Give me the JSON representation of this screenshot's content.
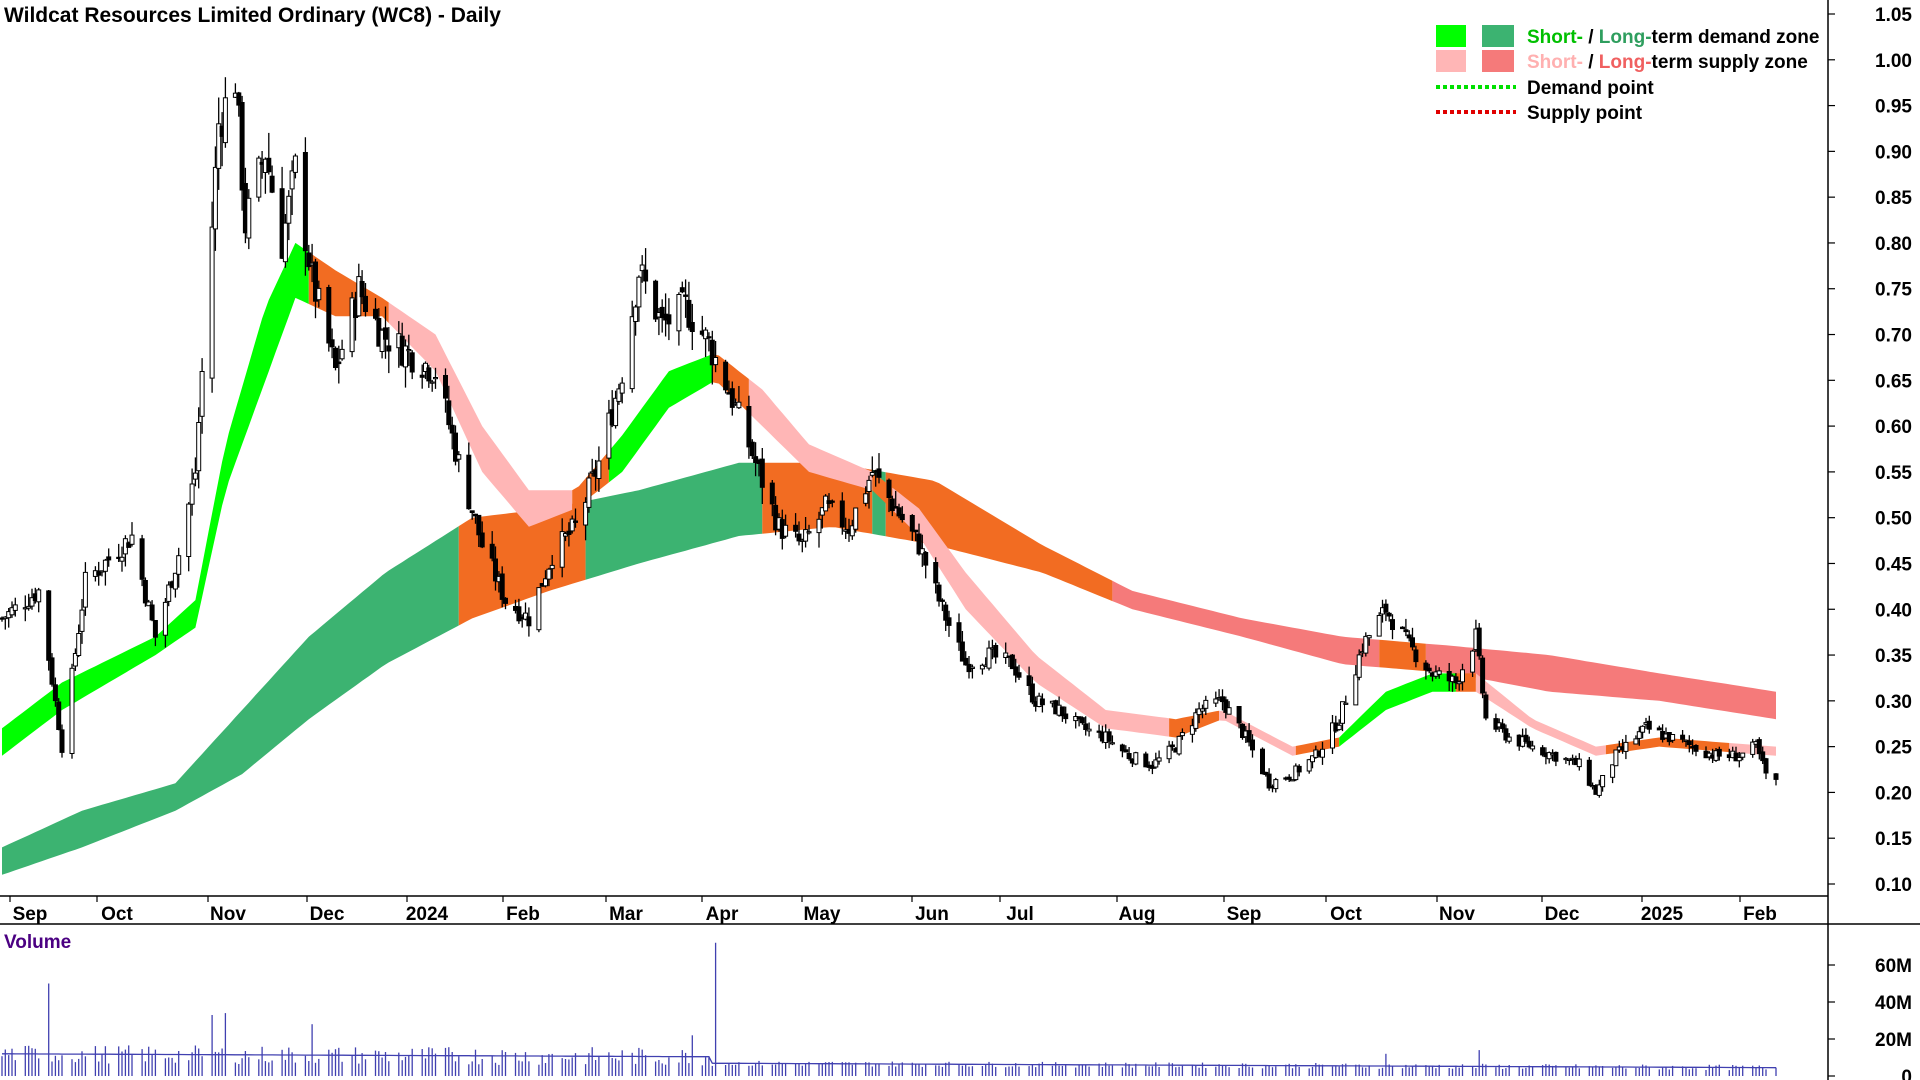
{
  "chart_data": {
    "type": "candlestick",
    "title": "Wildcat Resources Limited Ordinary (WC8) - Daily",
    "price_axis": {
      "ylim": [
        0.08,
        1.06
      ],
      "ticks": [
        "1.05",
        "1.00",
        "0.95",
        "0.90",
        "0.85",
        "0.80",
        "0.75",
        "0.70",
        "0.65",
        "0.60",
        "0.55",
        "0.50",
        "0.45",
        "0.40",
        "0.35",
        "0.30",
        "0.25",
        "0.20",
        "0.15",
        "0.10"
      ]
    },
    "x_labels": [
      "Sep",
      "Oct",
      "Nov",
      "Dec",
      "2024",
      "Feb",
      "Mar",
      "Apr",
      "May",
      "Jun",
      "Jul",
      "Aug",
      "Sep",
      "Oct",
      "Nov",
      "Dec",
      "2025",
      "Feb"
    ],
    "volume_panel": {
      "label": "Volume",
      "ticks": [
        "60M",
        "40M",
        "20M",
        "0"
      ],
      "ylim": [
        0,
        75
      ],
      "unit": "M"
    },
    "legend": {
      "rows": [
        {
          "parts": [
            "Short-",
            " / ",
            "Long-",
            "term demand zone"
          ]
        },
        {
          "parts": [
            "Short-",
            " / ",
            "Long-",
            "term supply zone"
          ]
        },
        {
          "parts": [
            "Demand point"
          ]
        },
        {
          "parts": [
            "Supply point"
          ]
        }
      ],
      "placement": "top-right"
    },
    "colors": {
      "short_demand": "#00ff00",
      "long_demand": "#3cb371",
      "short_supply": "#ffb6b6",
      "long_supply": "#f57a7a",
      "overlap_zone": "#f26c22",
      "demand_point": "#00e000",
      "supply_point": "#e00000",
      "volume": "#4040b0",
      "short_label_green": "#00c000",
      "short_label_pink": "#ffb0b0",
      "long_label_green": "#2e9e5e",
      "long_label_red": "#f06060"
    },
    "price_path": [
      {
        "date": "2023-08-28",
        "close": 0.39
      },
      {
        "date": "2023-09-08",
        "close": 0.42
      },
      {
        "date": "2023-09-15",
        "close": 0.25
      },
      {
        "date": "2023-09-22",
        "close": 0.43
      },
      {
        "date": "2023-10-06",
        "close": 0.48
      },
      {
        "date": "2023-10-13",
        "close": 0.37
      },
      {
        "date": "2023-10-20",
        "close": 0.46
      },
      {
        "date": "2023-10-25",
        "close": 0.55
      },
      {
        "date": "2023-10-30",
        "close": 0.82
      },
      {
        "date": "2023-11-01",
        "close": 0.93
      },
      {
        "date": "2023-11-06",
        "close": 0.98
      },
      {
        "date": "2023-11-09",
        "close": 0.82
      },
      {
        "date": "2023-11-15",
        "close": 0.9
      },
      {
        "date": "2023-11-20",
        "close": 0.8
      },
      {
        "date": "2023-11-24",
        "close": 0.88
      },
      {
        "date": "2023-11-29",
        "close": 0.76
      },
      {
        "date": "2023-12-06",
        "close": 0.66
      },
      {
        "date": "2023-12-13",
        "close": 0.75
      },
      {
        "date": "2023-12-20",
        "close": 0.7
      },
      {
        "date": "2024-01-05",
        "close": 0.66
      },
      {
        "date": "2024-01-12",
        "close": 0.56
      },
      {
        "date": "2024-01-19",
        "close": 0.47
      },
      {
        "date": "2024-01-26",
        "close": 0.41
      },
      {
        "date": "2024-02-02",
        "close": 0.39
      },
      {
        "date": "2024-02-09",
        "close": 0.46
      },
      {
        "date": "2024-02-16",
        "close": 0.49
      },
      {
        "date": "2024-02-23",
        "close": 0.56
      },
      {
        "date": "2024-03-01",
        "close": 0.66
      },
      {
        "date": "2024-03-06",
        "close": 0.77
      },
      {
        "date": "2024-03-13",
        "close": 0.71
      },
      {
        "date": "2024-03-20",
        "close": 0.73
      },
      {
        "date": "2024-03-27",
        "close": 0.69
      },
      {
        "date": "2024-04-03",
        "close": 0.63
      },
      {
        "date": "2024-04-10",
        "close": 0.56
      },
      {
        "date": "2024-04-17",
        "close": 0.49
      },
      {
        "date": "2024-04-24",
        "close": 0.47
      },
      {
        "date": "2024-05-01",
        "close": 0.51
      },
      {
        "date": "2024-05-08",
        "close": 0.49
      },
      {
        "date": "2024-05-15",
        "close": 0.55
      },
      {
        "date": "2024-05-22",
        "close": 0.51
      },
      {
        "date": "2024-05-29",
        "close": 0.47
      },
      {
        "date": "2024-06-05",
        "close": 0.4
      },
      {
        "date": "2024-06-12",
        "close": 0.34
      },
      {
        "date": "2024-06-19",
        "close": 0.35
      },
      {
        "date": "2024-06-26",
        "close": 0.34
      },
      {
        "date": "2024-07-03",
        "close": 0.3
      },
      {
        "date": "2024-07-10",
        "close": 0.29
      },
      {
        "date": "2024-07-17",
        "close": 0.27
      },
      {
        "date": "2024-07-24",
        "close": 0.26
      },
      {
        "date": "2024-07-31",
        "close": 0.24
      },
      {
        "date": "2024-08-07",
        "close": 0.23
      },
      {
        "date": "2024-08-14",
        "close": 0.25
      },
      {
        "date": "2024-08-21",
        "close": 0.29
      },
      {
        "date": "2024-08-28",
        "close": 0.3
      },
      {
        "date": "2024-09-04",
        "close": 0.26
      },
      {
        "date": "2024-09-11",
        "close": 0.21
      },
      {
        "date": "2024-09-18",
        "close": 0.22
      },
      {
        "date": "2024-09-25",
        "close": 0.24
      },
      {
        "date": "2024-10-02",
        "close": 0.28
      },
      {
        "date": "2024-10-09",
        "close": 0.36
      },
      {
        "date": "2024-10-16",
        "close": 0.4
      },
      {
        "date": "2024-10-23",
        "close": 0.36
      },
      {
        "date": "2024-10-30",
        "close": 0.33
      },
      {
        "date": "2024-11-06",
        "close": 0.32
      },
      {
        "date": "2024-11-12",
        "close": 0.37
      },
      {
        "date": "2024-11-15",
        "close": 0.28
      },
      {
        "date": "2024-11-22",
        "close": 0.26
      },
      {
        "date": "2024-11-29",
        "close": 0.25
      },
      {
        "date": "2024-12-06",
        "close": 0.24
      },
      {
        "date": "2024-12-13",
        "close": 0.23
      },
      {
        "date": "2024-12-18",
        "close": 0.2
      },
      {
        "date": "2024-12-24",
        "close": 0.24
      },
      {
        "date": "2025-01-02",
        "close": 0.27
      },
      {
        "date": "2025-01-09",
        "close": 0.26
      },
      {
        "date": "2025-01-16",
        "close": 0.25
      },
      {
        "date": "2025-01-23",
        "close": 0.24
      },
      {
        "date": "2025-01-30",
        "close": 0.24
      },
      {
        "date": "2025-02-04",
        "close": 0.25
      },
      {
        "date": "2025-02-07",
        "close": 0.22
      },
      {
        "date": "2025-02-10",
        "close": 0.21
      }
    ],
    "zones": {
      "long_term": [
        {
          "date": "2023-08-28",
          "top": 0.14,
          "bottom": 0.11
        },
        {
          "date": "2023-09-21",
          "top": 0.18,
          "bottom": 0.14
        },
        {
          "date": "2023-10-19",
          "top": 0.21,
          "bottom": 0.18
        },
        {
          "date": "2023-11-08",
          "top": 0.29,
          "bottom": 0.22
        },
        {
          "date": "2023-11-28",
          "top": 0.37,
          "bottom": 0.28
        },
        {
          "date": "2023-12-21",
          "top": 0.44,
          "bottom": 0.34
        },
        {
          "date": "2024-01-16",
          "top": 0.5,
          "bottom": 0.39
        },
        {
          "date": "2024-02-08",
          "top": 0.51,
          "bottom": 0.42
        },
        {
          "date": "2024-03-06",
          "top": 0.53,
          "bottom": 0.45
        },
        {
          "date": "2024-04-05",
          "top": 0.56,
          "bottom": 0.48
        },
        {
          "date": "2024-05-03",
          "top": 0.56,
          "bottom": 0.49
        },
        {
          "date": "2024-06-03",
          "top": 0.54,
          "bottom": 0.47
        },
        {
          "date": "2024-07-05",
          "top": 0.47,
          "bottom": 0.44
        },
        {
          "date": "2024-08-01",
          "top": 0.42,
          "bottom": 0.4
        },
        {
          "date": "2024-09-03",
          "top": 0.39,
          "bottom": 0.37
        },
        {
          "date": "2024-10-03",
          "top": 0.37,
          "bottom": 0.34
        },
        {
          "date": "2024-11-05",
          "top": 0.36,
          "bottom": 0.33
        },
        {
          "date": "2024-12-04",
          "top": 0.35,
          "bottom": 0.31
        },
        {
          "date": "2025-01-06",
          "top": 0.33,
          "bottom": 0.3
        },
        {
          "date": "2025-02-10",
          "top": 0.31,
          "bottom": 0.28
        }
      ],
      "long_term_kind": [
        {
          "from": "2023-08-28",
          "to": "2024-01-12",
          "kind": "demand"
        },
        {
          "from": "2024-01-12",
          "to": "2024-02-19",
          "kind": "overlap"
        },
        {
          "from": "2024-02-19",
          "to": "2024-04-12",
          "kind": "demand"
        },
        {
          "from": "2024-04-12",
          "to": "2024-05-15",
          "kind": "overlap"
        },
        {
          "from": "2024-05-15",
          "to": "2024-05-19",
          "kind": "demand"
        },
        {
          "from": "2024-05-19",
          "to": "2024-07-26",
          "kind": "overlap"
        },
        {
          "from": "2024-07-26",
          "to": "2024-10-14",
          "kind": "supply"
        },
        {
          "from": "2024-10-14",
          "to": "2024-10-28",
          "kind": "overlap"
        },
        {
          "from": "2024-10-28",
          "to": "2025-02-10",
          "kind": "supply"
        }
      ],
      "short_term": [
        {
          "date": "2023-08-28",
          "top": 0.27,
          "bottom": 0.24
        },
        {
          "date": "2023-09-15",
          "top": 0.32,
          "bottom": 0.29
        },
        {
          "date": "2023-10-13",
          "top": 0.37,
          "bottom": 0.35
        },
        {
          "date": "2023-10-25",
          "top": 0.41,
          "bottom": 0.38
        },
        {
          "date": "2023-11-03",
          "top": 0.58,
          "bottom": 0.53
        },
        {
          "date": "2023-11-15",
          "top": 0.73,
          "bottom": 0.65
        },
        {
          "date": "2023-11-24",
          "top": 0.8,
          "bottom": 0.74
        },
        {
          "date": "2023-12-06",
          "top": 0.77,
          "bottom": 0.72
        },
        {
          "date": "2023-12-20",
          "top": 0.74,
          "bottom": 0.72
        },
        {
          "date": "2024-01-05",
          "top": 0.7,
          "bottom": 0.66
        },
        {
          "date": "2024-01-19",
          "top": 0.6,
          "bottom": 0.55
        },
        {
          "date": "2024-02-02",
          "top": 0.53,
          "bottom": 0.49
        },
        {
          "date": "2024-02-16",
          "top": 0.53,
          "bottom": 0.51
        },
        {
          "date": "2024-03-01",
          "top": 0.59,
          "bottom": 0.55
        },
        {
          "date": "2024-03-15",
          "top": 0.66,
          "bottom": 0.62
        },
        {
          "date": "2024-03-29",
          "top": 0.68,
          "bottom": 0.65
        },
        {
          "date": "2024-04-12",
          "top": 0.64,
          "bottom": 0.6
        },
        {
          "date": "2024-04-26",
          "top": 0.58,
          "bottom": 0.55
        },
        {
          "date": "2024-05-15",
          "top": 0.55,
          "bottom": 0.53
        },
        {
          "date": "2024-05-29",
          "top": 0.51,
          "bottom": 0.48
        },
        {
          "date": "2024-06-12",
          "top": 0.44,
          "bottom": 0.4
        },
        {
          "date": "2024-07-03",
          "top": 0.35,
          "bottom": 0.32
        },
        {
          "date": "2024-07-24",
          "top": 0.29,
          "bottom": 0.27
        },
        {
          "date": "2024-08-14",
          "top": 0.28,
          "bottom": 0.26
        },
        {
          "date": "2024-08-28",
          "top": 0.29,
          "bottom": 0.28
        },
        {
          "date": "2024-09-18",
          "top": 0.25,
          "bottom": 0.24
        },
        {
          "date": "2024-10-02",
          "top": 0.26,
          "bottom": 0.25
        },
        {
          "date": "2024-10-16",
          "top": 0.31,
          "bottom": 0.29
        },
        {
          "date": "2024-10-30",
          "top": 0.33,
          "bottom": 0.31
        },
        {
          "date": "2024-11-12",
          "top": 0.33,
          "bottom": 0.31
        },
        {
          "date": "2024-11-29",
          "top": 0.28,
          "bottom": 0.27
        },
        {
          "date": "2024-12-18",
          "top": 0.25,
          "bottom": 0.24
        },
        {
          "date": "2025-01-06",
          "top": 0.26,
          "bottom": 0.25
        },
        {
          "date": "2025-02-10",
          "top": 0.25,
          "bottom": 0.24
        }
      ],
      "short_term_kind": [
        {
          "from": "2023-08-28",
          "to": "2023-11-28",
          "kind": "demand"
        },
        {
          "from": "2023-11-28",
          "to": "2023-12-22",
          "kind": "overlap"
        },
        {
          "from": "2023-12-22",
          "to": "2024-02-15",
          "kind": "supply"
        },
        {
          "from": "2024-02-15",
          "to": "2024-02-26",
          "kind": "overlap"
        },
        {
          "from": "2024-02-26",
          "to": "2024-03-28",
          "kind": "demand"
        },
        {
          "from": "2024-03-28",
          "to": "2024-04-08",
          "kind": "overlap"
        },
        {
          "from": "2024-04-08",
          "to": "2024-05-15",
          "kind": "supply"
        },
        {
          "from": "2024-05-15",
          "to": "2024-05-21",
          "kind": "overlap"
        },
        {
          "from": "2024-05-21",
          "to": "2024-08-12",
          "kind": "supply"
        },
        {
          "from": "2024-08-12",
          "to": "2024-08-27",
          "kind": "overlap"
        },
        {
          "from": "2024-08-27",
          "to": "2024-09-19",
          "kind": "supply"
        },
        {
          "from": "2024-09-19",
          "to": "2024-10-02",
          "kind": "overlap"
        },
        {
          "from": "2024-10-02",
          "to": "2024-11-06",
          "kind": "demand"
        },
        {
          "from": "2024-11-06",
          "to": "2024-11-12",
          "kind": "overlap"
        },
        {
          "from": "2024-11-12",
          "to": "2024-12-21",
          "kind": "supply"
        },
        {
          "from": "2024-12-21",
          "to": "2025-01-27",
          "kind": "overlap"
        },
        {
          "from": "2025-01-27",
          "to": "2025-02-10",
          "kind": "supply"
        }
      ]
    },
    "volume_spikes": [
      {
        "date": "2023-09-11",
        "value": 50
      },
      {
        "date": "2023-10-30",
        "value": 33
      },
      {
        "date": "2023-11-03",
        "value": 34
      },
      {
        "date": "2023-11-29",
        "value": 28
      },
      {
        "date": "2024-03-29",
        "value": 72
      },
      {
        "date": "2024-03-22",
        "value": 22
      },
      {
        "date": "2024-10-16",
        "value": 12
      },
      {
        "date": "2024-11-13",
        "value": 14
      }
    ]
  }
}
